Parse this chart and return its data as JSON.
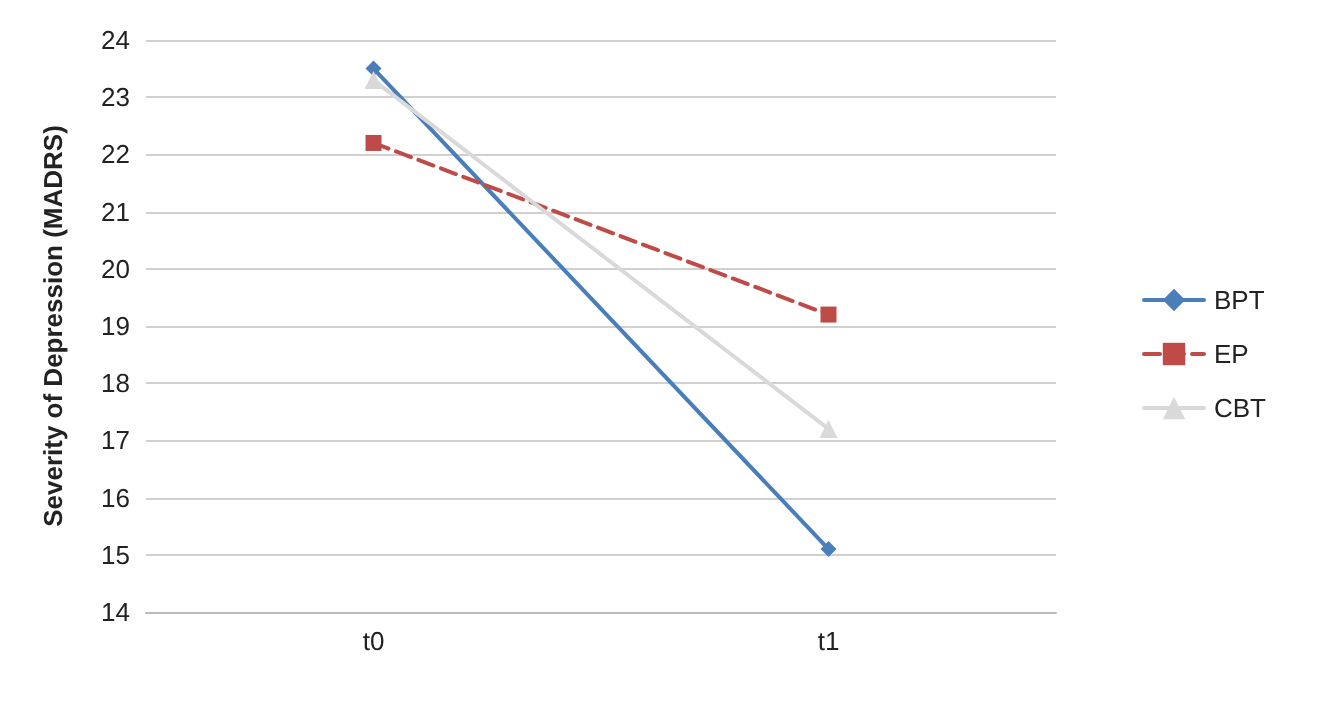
{
  "chart_data": {
    "type": "line",
    "ylabel": "Severity of Depression (MADRS)",
    "categories": [
      "t0",
      "t1"
    ],
    "series": [
      {
        "name": "BPT",
        "color": "#4a7ebb",
        "values": [
          23.5,
          15.1
        ],
        "marker": "diamond",
        "line_style": "solid"
      },
      {
        "name": "EP",
        "color": "#be4b48",
        "values": [
          22.2,
          19.2
        ],
        "marker": "square",
        "line_style": "dashed"
      },
      {
        "name": "CBT",
        "color": "#d9d9d9",
        "values": [
          23.3,
          17.2
        ],
        "marker": "triangle",
        "line_style": "solid"
      }
    ],
    "ylim": [
      14,
      24
    ],
    "yticks": [
      14,
      15,
      16,
      17,
      18,
      19,
      20,
      21,
      22,
      23,
      24
    ],
    "grid": "y",
    "legend": "right"
  }
}
